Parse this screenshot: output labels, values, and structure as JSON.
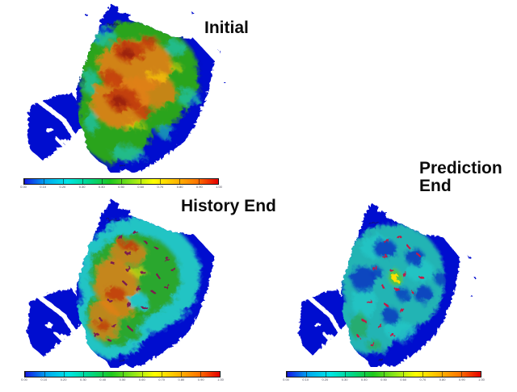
{
  "figure": {
    "background": "#ffffff",
    "description": "Three reservoir simulation heatmaps (Initial, History End, Prediction End), each with a rainbow colorbar below"
  },
  "panels": {
    "initial": {
      "title": "Initial"
    },
    "history": {
      "title": "History End"
    },
    "prediction": {
      "title": "Prediction End"
    }
  },
  "colorbar": {
    "ticks": [
      "0.00",
      "0.10",
      "0.20",
      "0.30",
      "0.40",
      "0.50",
      "0.60",
      "0.70",
      "0.80",
      "0.90",
      "1.00"
    ]
  },
  "colors": {
    "sea": "#0009cf",
    "green": "#2ba41e",
    "cyan_fringe": "#1fc3ae",
    "orange": "#e08018",
    "red": "#c03508",
    "dark_red": "#9c2410",
    "yellow": "#ffe000",
    "cyan_base": "#24c4c4",
    "teal": "#22b4b4",
    "deep_patch": "#0a38c0",
    "green_tinge": "#2ca84c",
    "yellow_ring": "#58c828",
    "well_dark": "#7c1f4e",
    "well_red": "#c41744",
    "gradient": [
      "#1414e6",
      "#00a8f0",
      "#00e6e6",
      "#00d78c",
      "#1ec81e",
      "#8ce619",
      "#ffff00",
      "#ffbe00",
      "#ff7800",
      "#e60000"
    ]
  },
  "chart_data": [
    {
      "type": "heatmap",
      "title": "Initial",
      "palette": "rainbow blue-to-red",
      "legend_position": "bottom",
      "colorbar_ticks": [
        "0.00",
        "0.10",
        "0.20",
        "0.30",
        "0.40",
        "0.50",
        "0.60",
        "0.70",
        "0.80",
        "0.90",
        "1.00"
      ],
      "summary": "High values: large orange/red mottled core over the central reservoir, green rim, cyan fringes, deep-blue outside the pay zone within the field outline"
    },
    {
      "type": "heatmap",
      "title": "History End",
      "palette": "rainbow blue-to-red",
      "legend_position": "bottom",
      "colorbar_ticks": [
        "0.00",
        "0.10",
        "0.20",
        "0.30",
        "0.40",
        "0.50",
        "0.60",
        "0.70",
        "0.80",
        "0.90",
        "1.00"
      ],
      "summary": "Moderate values: cyan rim, green interior with orange/yellow patches along the west-central band; many small dark-red well markers scattered across the field"
    },
    {
      "type": "heatmap",
      "title": "Prediction End",
      "palette": "rainbow blue-to-red",
      "legend_position": "bottom",
      "colorbar_ticks": [
        "0.00",
        "0.10",
        "0.20",
        "0.30",
        "0.40",
        "0.50",
        "0.60",
        "0.70",
        "0.80",
        "0.90",
        "1.00"
      ],
      "summary": "Low values: mostly teal/cyan with several dark-blue depleted patches, red well markers, green tinges in the south-west and one small yellow spot near the center"
    }
  ]
}
